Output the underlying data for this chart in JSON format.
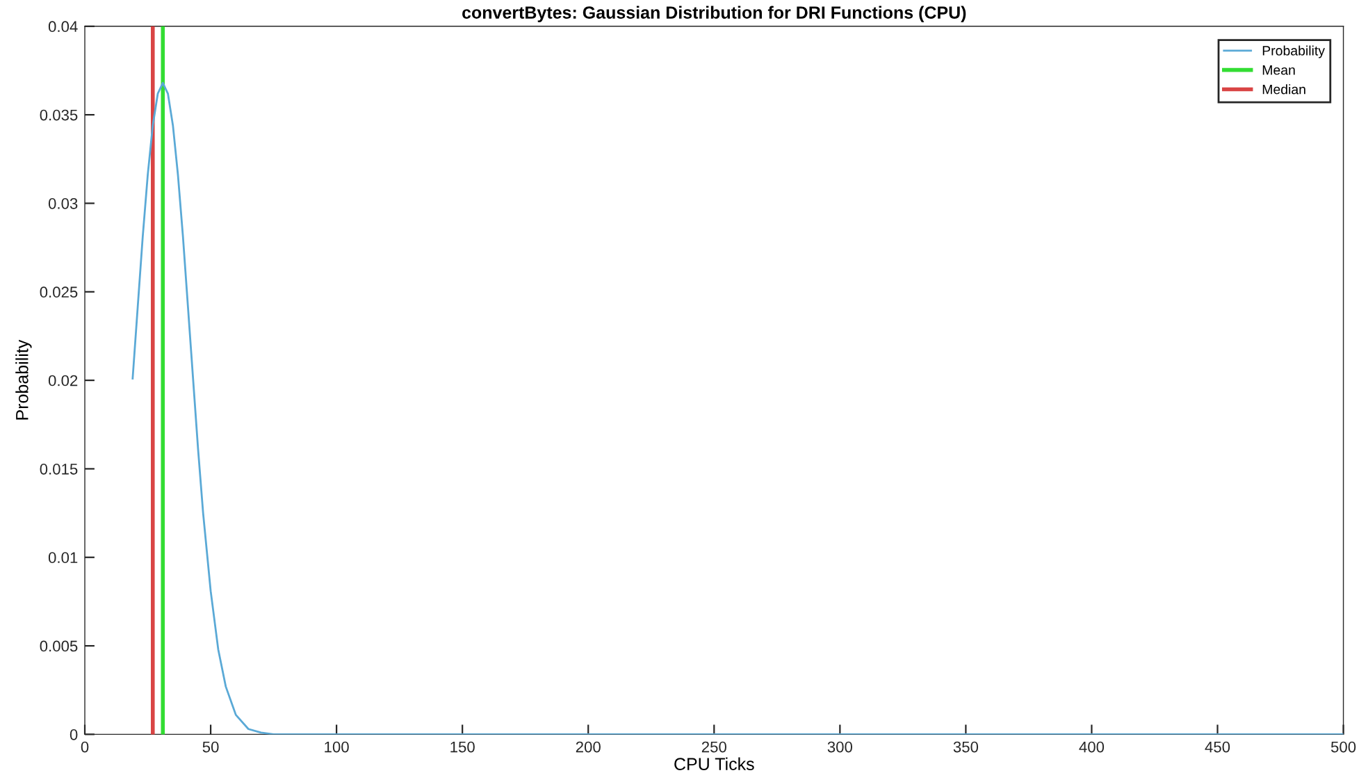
{
  "chart_data": {
    "type": "line",
    "title": "convertBytes: Gaussian Distribution for DRI Functions (CPU)",
    "xlabel": "CPU Ticks",
    "ylabel": "Probability",
    "xlim": [
      0,
      500
    ],
    "ylim": [
      0,
      0.04
    ],
    "xticks": [
      0,
      50,
      100,
      150,
      200,
      250,
      300,
      350,
      400,
      450,
      500
    ],
    "yticks": [
      0,
      0.005,
      0.01,
      0.015,
      0.02,
      0.025,
      0.03,
      0.035,
      0.04
    ],
    "grid": false,
    "legend": "top right",
    "marker": "none",
    "line_style": "solid",
    "series": [
      {
        "name": "Probability",
        "color": "#5aa9d6",
        "x": [
          19,
          21,
          23,
          25,
          27,
          29,
          31,
          33,
          35,
          37,
          39,
          41,
          43,
          45,
          47,
          50,
          53,
          56,
          60,
          65,
          70,
          75,
          100,
          150,
          200,
          250,
          300,
          350,
          400,
          450,
          500
        ],
        "values": [
          0.0201,
          0.0241,
          0.0281,
          0.0316,
          0.0344,
          0.0362,
          0.0368,
          0.0362,
          0.0344,
          0.0316,
          0.0281,
          0.0241,
          0.0201,
          0.0161,
          0.0125,
          0.0081,
          0.0048,
          0.0027,
          0.0011,
          0.0003,
          0.0001,
          0,
          0,
          0,
          0,
          0,
          0,
          0,
          0,
          0,
          0
        ]
      },
      {
        "name": "Mean",
        "color": "#33dd33",
        "x": [
          31,
          31
        ],
        "values": [
          0,
          0.04
        ]
      },
      {
        "name": "Median",
        "color": "#d94444",
        "x": [
          27,
          27
        ],
        "values": [
          0,
          0.04
        ]
      }
    ]
  }
}
